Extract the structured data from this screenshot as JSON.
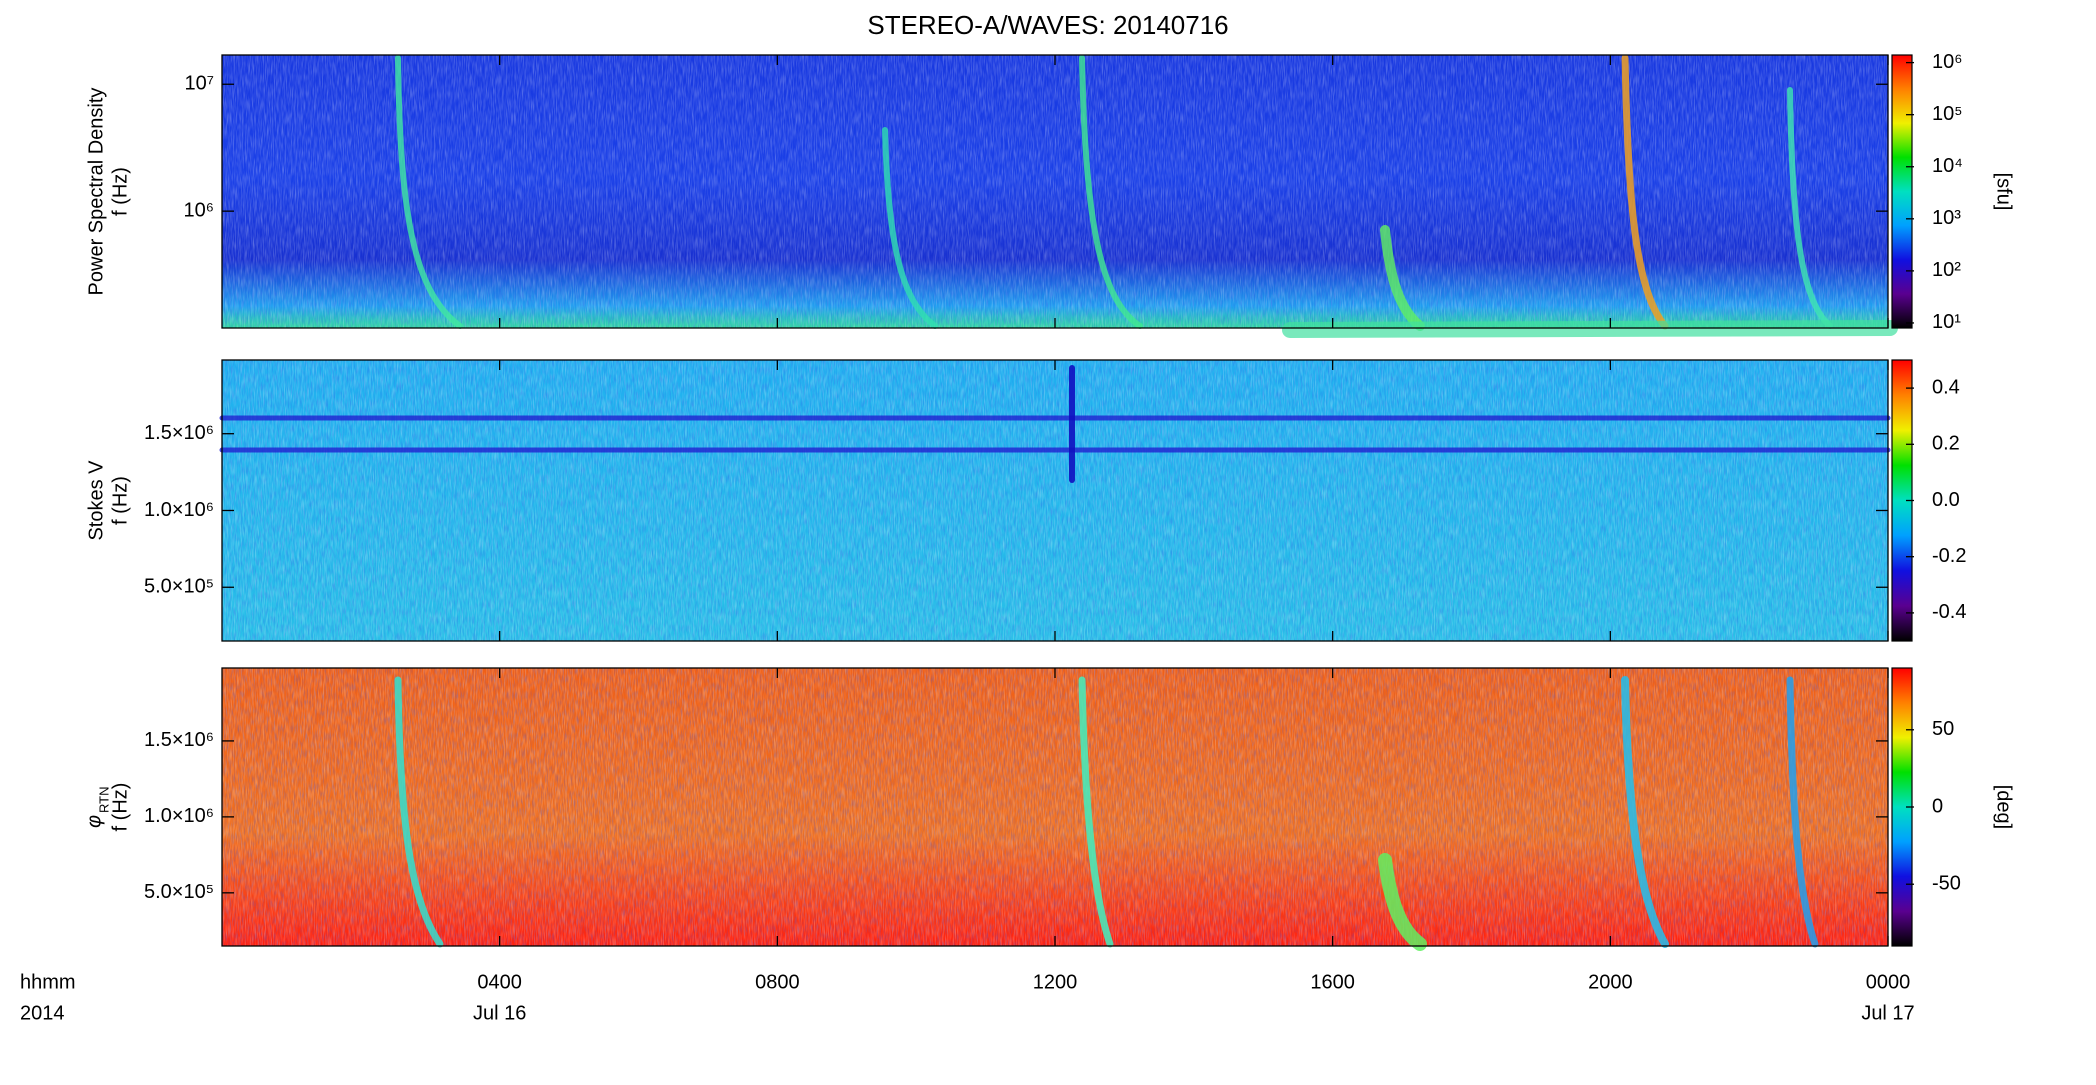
{
  "chart_data": [
    {
      "type": "heatmap",
      "title": "STEREO-A/WAVES: 20140716",
      "ylabel": [
        "Power Spectral Density",
        "f (Hz)"
      ],
      "ylog": true,
      "ylim": [
        120000,
        17000000
      ],
      "yticks": [
        {
          "value": 1000000,
          "label": "10⁶"
        },
        {
          "value": 10000000,
          "label": "10⁷"
        }
      ],
      "colormap": [
        "#000000",
        "#5a0090",
        "#1010e0",
        "#00a0ff",
        "#00e0c0",
        "#00e000",
        "#f0f000",
        "#ff8000",
        "#ff0000"
      ],
      "colorbar": {
        "label": "[sfu]",
        "log": true,
        "clim": [
          8,
          1400000
        ],
        "ticks": [
          {
            "value": 10,
            "label": "10¹"
          },
          {
            "value": 100,
            "label": "10²"
          },
          {
            "value": 1000,
            "label": "10³"
          },
          {
            "value": 10000,
            "label": "10⁴"
          },
          {
            "value": 100000,
            "label": "10⁵"
          },
          {
            "value": 1000000,
            "label": "10⁶"
          }
        ]
      }
    },
    {
      "type": "heatmap",
      "ylabel": [
        "Stokes V",
        "f (Hz)"
      ],
      "ylog": false,
      "ylim": [
        150000,
        1980000
      ],
      "yticks": [
        {
          "value": 500000,
          "label": "5.0×10⁵"
        },
        {
          "value": 1000000,
          "label": "1.0×10⁶"
        },
        {
          "value": 1500000,
          "label": "1.5×10⁶"
        }
      ],
      "colormap": [
        "#000000",
        "#5a0090",
        "#1010e0",
        "#00a0ff",
        "#00e0c0",
        "#00e000",
        "#f0f000",
        "#ff8000",
        "#ff0000"
      ],
      "colorbar": {
        "log": false,
        "clim": [
          -0.5,
          0.5
        ],
        "ticks": [
          -0.4,
          -0.2,
          {
            "value": 0,
            "label": "0.0"
          },
          0.2,
          0.4
        ]
      }
    },
    {
      "type": "heatmap",
      "ylabel": {
        "symbol": "φ",
        "subscript": "RTN",
        "unit": "f (Hz)"
      },
      "ylog": false,
      "ylim": [
        150000,
        1980000
      ],
      "yticks": [
        {
          "value": 500000,
          "label": "5.0×10⁵"
        },
        {
          "value": 1000000,
          "label": "1.0×10⁶"
        },
        {
          "value": 1500000,
          "label": "1.5×10⁶"
        }
      ],
      "colormap": [
        "#000000",
        "#5a0090",
        "#1010e0",
        "#00a0ff",
        "#00e0c0",
        "#00e000",
        "#f0f000",
        "#ff8000",
        "#ff0000"
      ],
      "colorbar": {
        "label": "[deg]",
        "log": false,
        "clim": [
          -90,
          90
        ],
        "ticks": [
          -50,
          0,
          50
        ]
      },
      "xlabel": [
        "hhmm",
        "2014"
      ],
      "xlim": [
        0,
        24
      ],
      "xticks": [
        {
          "value": 4,
          "label": "0400"
        },
        {
          "value": 8,
          "label": "0800"
        },
        {
          "value": 12,
          "label": "1200"
        },
        {
          "value": 16,
          "label": "1600"
        },
        {
          "value": 20,
          "label": "2000"
        },
        {
          "value": 24,
          "label": "0000"
        }
      ],
      "xdates": [
        {
          "value": 4,
          "label": "Jul 16"
        },
        {
          "value": 24,
          "label": "Jul 17"
        }
      ]
    }
  ]
}
